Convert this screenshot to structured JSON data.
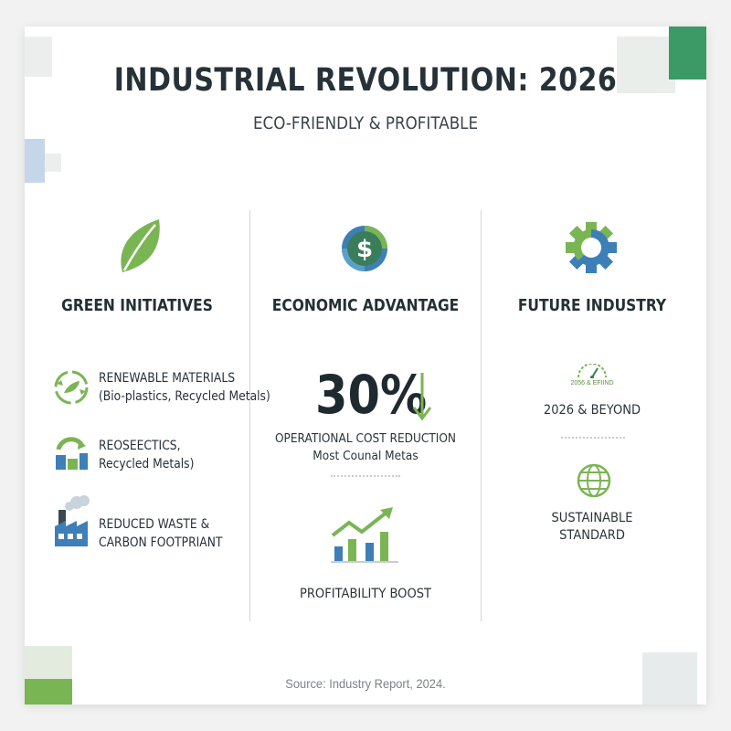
{
  "title": "INDUSTRIAL REVOLUTION: 2026",
  "subtitle": "ECO-FRIENDLY & PROFITABLE",
  "columns": {
    "green": {
      "heading": "GREEN INITIATIVES",
      "icon": "leaf-icon",
      "items": [
        {
          "icon": "recycle-icon",
          "line1": "RENEWABLE MATERIALS",
          "line2": "(Bio-plastics, Recycled Metals)"
        },
        {
          "icon": "recycle-blocks-icon",
          "line1": "REOSEECTICS,",
          "line2": "Recycled Metals)"
        },
        {
          "icon": "factory-icon",
          "line1": "REDUCED WASTE &",
          "line2": "CARBON FOOTPRIANT"
        }
      ]
    },
    "economic": {
      "heading": "ECONOMIC ADVANTAGE",
      "icon": "dollar-coin-icon",
      "percent": "30%",
      "percent_line1": "OPERATIONAL COST REDUCTION",
      "percent_line2": "Most Counal Metas",
      "chart_icon": "growth-chart-icon",
      "chart_label": "PROFITABILITY BOOST"
    },
    "future": {
      "heading": "FUTURE INDUSTRY",
      "icon": "gear-icon",
      "gauge_caption": "2056 & EFIIND",
      "beyond_label": "2026 & BEYOND",
      "globe_icon": "globe-icon",
      "sustainable_line1": "SUSTAINABLE",
      "sustainable_line2": "STANDARD"
    }
  },
  "source": "Source: Industry Report, 2024.",
  "colors": {
    "green": "#7ab554",
    "dark_green": "#3c9a67",
    "blue": "#3d7fb6",
    "text": "#263238"
  }
}
